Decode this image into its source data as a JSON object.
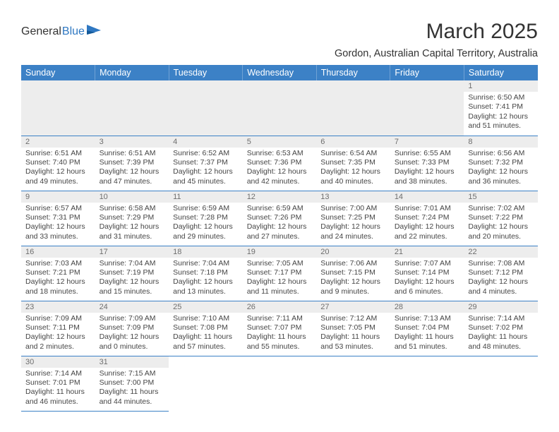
{
  "logo": {
    "text1": "General",
    "text2": "Blue",
    "color1": "#4b4b4b",
    "color2": "#2f78c2"
  },
  "title": "March 2025",
  "location": "Gordon, Australian Capital Territory, Australia",
  "header_bg": "#3c81c6",
  "header_text": "#ffffff",
  "daynum_bg": "#ededed",
  "daynum_color": "#6e6e6e",
  "border_color": "#3c81c6",
  "body_color": "#454545",
  "days": [
    "Sunday",
    "Monday",
    "Tuesday",
    "Wednesday",
    "Thursday",
    "Friday",
    "Saturday"
  ],
  "rows": [
    [
      null,
      null,
      null,
      null,
      null,
      null,
      {
        "n": "1",
        "sunrise": "Sunrise: 6:50 AM",
        "sunset": "Sunset: 7:41 PM",
        "daylight": "Daylight: 12 hours and 51 minutes."
      }
    ],
    [
      {
        "n": "2",
        "sunrise": "Sunrise: 6:51 AM",
        "sunset": "Sunset: 7:40 PM",
        "daylight": "Daylight: 12 hours and 49 minutes."
      },
      {
        "n": "3",
        "sunrise": "Sunrise: 6:51 AM",
        "sunset": "Sunset: 7:39 PM",
        "daylight": "Daylight: 12 hours and 47 minutes."
      },
      {
        "n": "4",
        "sunrise": "Sunrise: 6:52 AM",
        "sunset": "Sunset: 7:37 PM",
        "daylight": "Daylight: 12 hours and 45 minutes."
      },
      {
        "n": "5",
        "sunrise": "Sunrise: 6:53 AM",
        "sunset": "Sunset: 7:36 PM",
        "daylight": "Daylight: 12 hours and 42 minutes."
      },
      {
        "n": "6",
        "sunrise": "Sunrise: 6:54 AM",
        "sunset": "Sunset: 7:35 PM",
        "daylight": "Daylight: 12 hours and 40 minutes."
      },
      {
        "n": "7",
        "sunrise": "Sunrise: 6:55 AM",
        "sunset": "Sunset: 7:33 PM",
        "daylight": "Daylight: 12 hours and 38 minutes."
      },
      {
        "n": "8",
        "sunrise": "Sunrise: 6:56 AM",
        "sunset": "Sunset: 7:32 PM",
        "daylight": "Daylight: 12 hours and 36 minutes."
      }
    ],
    [
      {
        "n": "9",
        "sunrise": "Sunrise: 6:57 AM",
        "sunset": "Sunset: 7:31 PM",
        "daylight": "Daylight: 12 hours and 33 minutes."
      },
      {
        "n": "10",
        "sunrise": "Sunrise: 6:58 AM",
        "sunset": "Sunset: 7:29 PM",
        "daylight": "Daylight: 12 hours and 31 minutes."
      },
      {
        "n": "11",
        "sunrise": "Sunrise: 6:59 AM",
        "sunset": "Sunset: 7:28 PM",
        "daylight": "Daylight: 12 hours and 29 minutes."
      },
      {
        "n": "12",
        "sunrise": "Sunrise: 6:59 AM",
        "sunset": "Sunset: 7:26 PM",
        "daylight": "Daylight: 12 hours and 27 minutes."
      },
      {
        "n": "13",
        "sunrise": "Sunrise: 7:00 AM",
        "sunset": "Sunset: 7:25 PM",
        "daylight": "Daylight: 12 hours and 24 minutes."
      },
      {
        "n": "14",
        "sunrise": "Sunrise: 7:01 AM",
        "sunset": "Sunset: 7:24 PM",
        "daylight": "Daylight: 12 hours and 22 minutes."
      },
      {
        "n": "15",
        "sunrise": "Sunrise: 7:02 AM",
        "sunset": "Sunset: 7:22 PM",
        "daylight": "Daylight: 12 hours and 20 minutes."
      }
    ],
    [
      {
        "n": "16",
        "sunrise": "Sunrise: 7:03 AM",
        "sunset": "Sunset: 7:21 PM",
        "daylight": "Daylight: 12 hours and 18 minutes."
      },
      {
        "n": "17",
        "sunrise": "Sunrise: 7:04 AM",
        "sunset": "Sunset: 7:19 PM",
        "daylight": "Daylight: 12 hours and 15 minutes."
      },
      {
        "n": "18",
        "sunrise": "Sunrise: 7:04 AM",
        "sunset": "Sunset: 7:18 PM",
        "daylight": "Daylight: 12 hours and 13 minutes."
      },
      {
        "n": "19",
        "sunrise": "Sunrise: 7:05 AM",
        "sunset": "Sunset: 7:17 PM",
        "daylight": "Daylight: 12 hours and 11 minutes."
      },
      {
        "n": "20",
        "sunrise": "Sunrise: 7:06 AM",
        "sunset": "Sunset: 7:15 PM",
        "daylight": "Daylight: 12 hours and 9 minutes."
      },
      {
        "n": "21",
        "sunrise": "Sunrise: 7:07 AM",
        "sunset": "Sunset: 7:14 PM",
        "daylight": "Daylight: 12 hours and 6 minutes."
      },
      {
        "n": "22",
        "sunrise": "Sunrise: 7:08 AM",
        "sunset": "Sunset: 7:12 PM",
        "daylight": "Daylight: 12 hours and 4 minutes."
      }
    ],
    [
      {
        "n": "23",
        "sunrise": "Sunrise: 7:09 AM",
        "sunset": "Sunset: 7:11 PM",
        "daylight": "Daylight: 12 hours and 2 minutes."
      },
      {
        "n": "24",
        "sunrise": "Sunrise: 7:09 AM",
        "sunset": "Sunset: 7:09 PM",
        "daylight": "Daylight: 12 hours and 0 minutes."
      },
      {
        "n": "25",
        "sunrise": "Sunrise: 7:10 AM",
        "sunset": "Sunset: 7:08 PM",
        "daylight": "Daylight: 11 hours and 57 minutes."
      },
      {
        "n": "26",
        "sunrise": "Sunrise: 7:11 AM",
        "sunset": "Sunset: 7:07 PM",
        "daylight": "Daylight: 11 hours and 55 minutes."
      },
      {
        "n": "27",
        "sunrise": "Sunrise: 7:12 AM",
        "sunset": "Sunset: 7:05 PM",
        "daylight": "Daylight: 11 hours and 53 minutes."
      },
      {
        "n": "28",
        "sunrise": "Sunrise: 7:13 AM",
        "sunset": "Sunset: 7:04 PM",
        "daylight": "Daylight: 11 hours and 51 minutes."
      },
      {
        "n": "29",
        "sunrise": "Sunrise: 7:14 AM",
        "sunset": "Sunset: 7:02 PM",
        "daylight": "Daylight: 11 hours and 48 minutes."
      }
    ],
    [
      {
        "n": "30",
        "sunrise": "Sunrise: 7:14 AM",
        "sunset": "Sunset: 7:01 PM",
        "daylight": "Daylight: 11 hours and 46 minutes."
      },
      {
        "n": "31",
        "sunrise": "Sunrise: 7:15 AM",
        "sunset": "Sunset: 7:00 PM",
        "daylight": "Daylight: 11 hours and 44 minutes."
      },
      null,
      null,
      null,
      null,
      null
    ]
  ]
}
